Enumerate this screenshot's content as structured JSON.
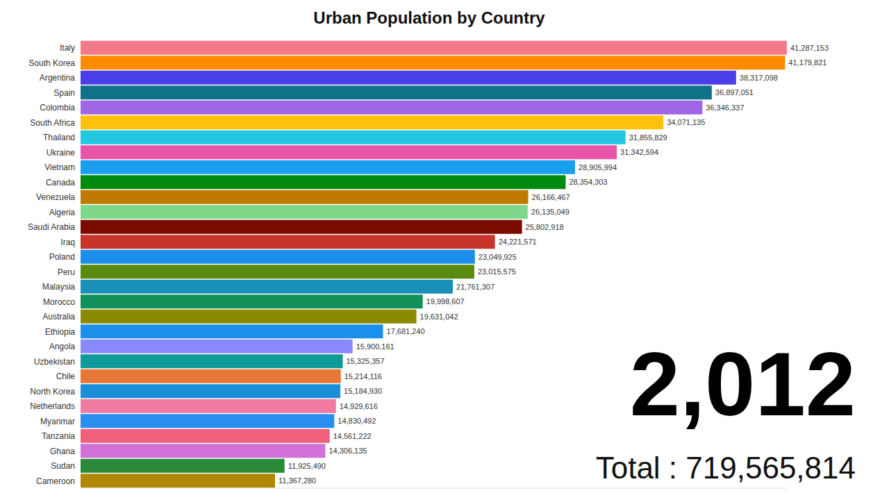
{
  "chart_data": {
    "type": "bar",
    "title": "Urban Population by Country",
    "orientation": "horizontal",
    "data_labels": true,
    "tick_labels": "y",
    "grid": false,
    "categories": [
      "Italy",
      "South Korea",
      "Argentina",
      "Spain",
      "Colombia",
      "South Africa",
      "Thailand",
      "Ukraine",
      "Vietnam",
      "Canada",
      "Venezuela",
      "Algeria",
      "Saudi Arabia",
      "Iraq",
      "Poland",
      "Peru",
      "Malaysia",
      "Morocco",
      "Australia",
      "Ethiopia",
      "Angola",
      "Uzbekistan",
      "Chile",
      "North Korea",
      "Netherlands",
      "Myanmar",
      "Tanzania",
      "Ghana",
      "Sudan",
      "Cameroon"
    ],
    "values": [
      41287153,
      41179821,
      38317098,
      36897051,
      36346337,
      34071135,
      31855829,
      31342594,
      28905994,
      28354303,
      26166467,
      26135049,
      25802918,
      24221571,
      23049925,
      23015575,
      21761307,
      19998607,
      19631042,
      17681240,
      15900161,
      15325357,
      15214116,
      15184930,
      14929616,
      14830492,
      14561222,
      14306135,
      11925490,
      11367280
    ],
    "value_labels": [
      "41,287,153",
      "41,179,821",
      "38,317,098",
      "36,897,051",
      "36,346,337",
      "34,071,135",
      "31,855,829",
      "31,342,594",
      "28,905,994",
      "28,354,303",
      "26,166,467",
      "26,135,049",
      "25,802,918",
      "24,221,571",
      "23,049,925",
      "23,015,575",
      "21,761,307",
      "19,998,607",
      "19,631,042",
      "17,681,240",
      "15,900,161",
      "15,325,357",
      "15,214,116",
      "15,184,930",
      "14,929,616",
      "14,830,492",
      "14,561,222",
      "14,306,135",
      "11,925,490",
      "11,367,280"
    ],
    "colors": [
      "#f47a8a",
      "#ff8c00",
      "#4a3ee8",
      "#0e7389",
      "#a066e6",
      "#ffc20a",
      "#22c7e0",
      "#e855a8",
      "#1a9ff0",
      "#008a0f",
      "#c07a00",
      "#7ed88a",
      "#7a0a00",
      "#c8332a",
      "#1a8fec",
      "#5a8a10",
      "#1a8fb8",
      "#12905a",
      "#8a8a00",
      "#1a8fec",
      "#8a8aff",
      "#0e9a98",
      "#e87838",
      "#1a8fd8",
      "#f07aa0",
      "#2a8ff0",
      "#f0607a",
      "#d070d8",
      "#2a8a3a",
      "#b08800"
    ],
    "xlim": [
      0,
      41287153
    ],
    "annotations": [
      {
        "text": "2,012"
      },
      {
        "text": "Total : 719,565,814"
      }
    ]
  }
}
